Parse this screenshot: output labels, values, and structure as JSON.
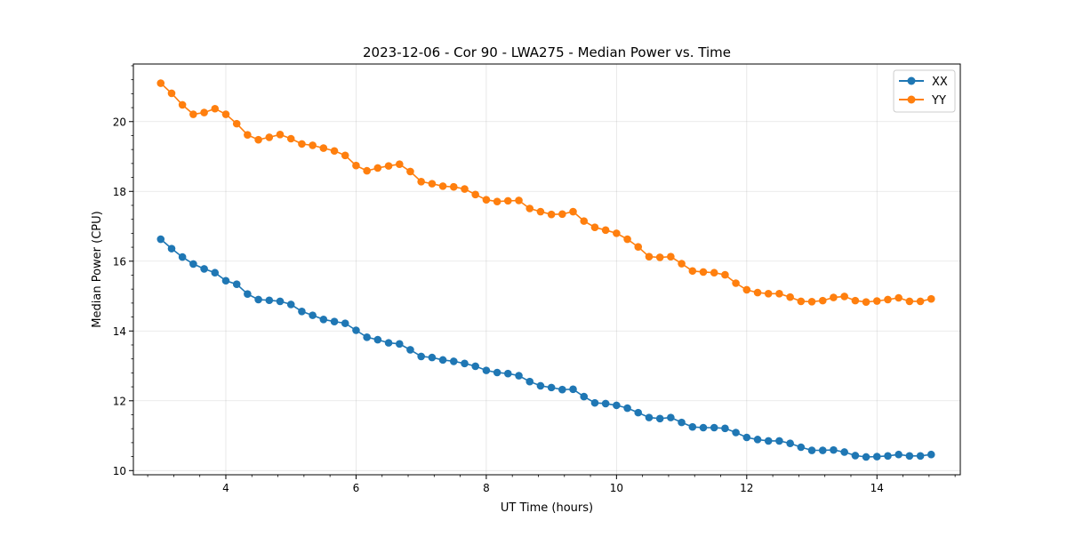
{
  "chart_data": {
    "type": "line",
    "title": "2023-12-06 - Cor 90 - LWA275 - Median Power vs. Time",
    "xlabel": "UT Time (hours)",
    "ylabel": "Median Power (CPU)",
    "xlim": [
      2.58,
      15.28
    ],
    "ylim": [
      9.88,
      21.65
    ],
    "xticks": [
      4,
      6,
      8,
      10,
      12,
      14
    ],
    "xtick_labels": [
      "4",
      "6",
      "8",
      "10",
      "12",
      "14"
    ],
    "yticks": [
      10,
      12,
      14,
      16,
      18,
      20
    ],
    "ytick_labels": [
      "10",
      "12",
      "14",
      "16",
      "18",
      "20"
    ],
    "grid": true,
    "legend_position": "top-right",
    "x": [
      3.0,
      3.167,
      3.333,
      3.5,
      3.667,
      3.833,
      4.0,
      4.167,
      4.333,
      4.5,
      4.667,
      4.833,
      5.0,
      5.167,
      5.333,
      5.5,
      5.667,
      5.833,
      6.0,
      6.167,
      6.333,
      6.5,
      6.667,
      6.833,
      7.0,
      7.167,
      7.333,
      7.5,
      7.667,
      7.833,
      8.0,
      8.167,
      8.333,
      8.5,
      8.667,
      8.833,
      9.0,
      9.167,
      9.333,
      9.5,
      9.667,
      9.833,
      10.0,
      10.167,
      10.333,
      10.5,
      10.667,
      10.833,
      11.0,
      11.167,
      11.333,
      11.5,
      11.667,
      11.833,
      12.0,
      12.167,
      12.333,
      12.5,
      12.667,
      12.833,
      13.0,
      13.167,
      13.333,
      13.5,
      13.667,
      13.833,
      14.0,
      14.167,
      14.333,
      14.5,
      14.667,
      14.833
    ],
    "series": [
      {
        "name": "XX",
        "color": "#1f77b4",
        "values": [
          16.63,
          16.36,
          16.12,
          15.92,
          15.78,
          15.67,
          15.44,
          15.34,
          15.06,
          14.9,
          14.88,
          14.85,
          14.76,
          14.56,
          14.45,
          14.33,
          14.27,
          14.22,
          14.02,
          13.82,
          13.75,
          13.66,
          13.63,
          13.46,
          13.27,
          13.24,
          13.17,
          13.13,
          13.07,
          12.99,
          12.87,
          12.81,
          12.78,
          12.72,
          12.55,
          12.43,
          12.38,
          12.32,
          12.33,
          12.12,
          11.94,
          11.92,
          11.87,
          11.79,
          11.66,
          11.52,
          11.49,
          11.52,
          11.38,
          11.25,
          11.23,
          11.23,
          11.21,
          11.09,
          10.95,
          10.89,
          10.85,
          10.85,
          10.78,
          10.67,
          10.58,
          10.58,
          10.59,
          10.53,
          10.43,
          10.39,
          10.4,
          10.42,
          10.46,
          10.42,
          10.42,
          10.46
        ]
      },
      {
        "name": "YY",
        "color": "#ff7f0e",
        "values": [
          21.1,
          20.81,
          20.48,
          20.21,
          20.26,
          20.37,
          20.21,
          19.94,
          19.62,
          19.48,
          19.55,
          19.63,
          19.51,
          19.36,
          19.32,
          19.24,
          19.16,
          19.03,
          18.74,
          18.59,
          18.67,
          18.73,
          18.78,
          18.57,
          18.28,
          18.22,
          18.15,
          18.13,
          18.07,
          17.91,
          17.76,
          17.71,
          17.73,
          17.74,
          17.51,
          17.42,
          17.34,
          17.35,
          17.42,
          17.15,
          16.97,
          16.89,
          16.8,
          16.63,
          16.41,
          16.13,
          16.11,
          16.13,
          15.93,
          15.72,
          15.69,
          15.67,
          15.61,
          15.37,
          15.18,
          15.1,
          15.07,
          15.07,
          14.97,
          14.85,
          14.84,
          14.87,
          14.96,
          14.99,
          14.87,
          14.83,
          14.86,
          14.9,
          14.95,
          14.85,
          14.85,
          14.92
        ]
      }
    ]
  }
}
